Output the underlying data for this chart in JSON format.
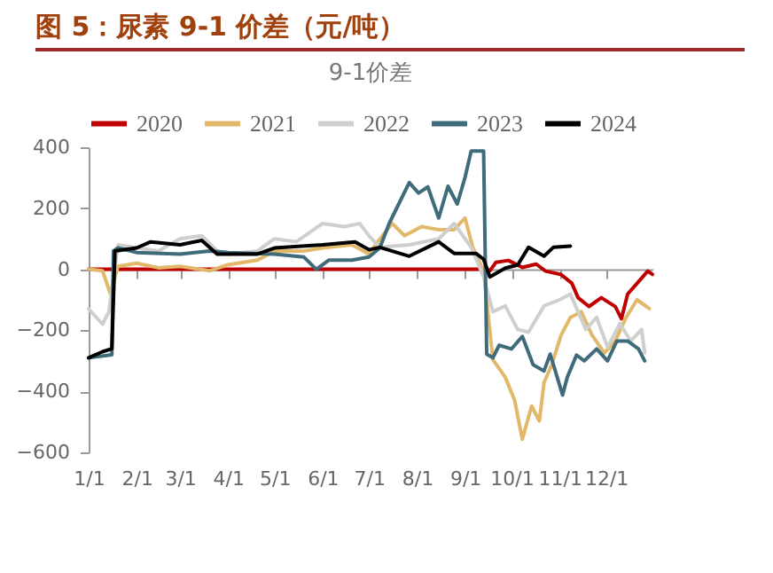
{
  "chart_data": {
    "type": "line",
    "title": "图 5：尿素 9-1 价差（元/吨）",
    "subtitle": "9-1价差",
    "xlim": [
      "--01-01",
      "--12-31"
    ],
    "xticks": [
      {
        "value": "--01-01",
        "label": "1/1"
      },
      {
        "value": "--02-01",
        "label": "2/1"
      },
      {
        "value": "--03-01",
        "label": "3/1"
      },
      {
        "value": "--04-01",
        "label": "4/1"
      },
      {
        "value": "--05-01",
        "label": "5/1"
      },
      {
        "value": "--06-01",
        "label": "6/1"
      },
      {
        "value": "--07-01",
        "label": "7/1"
      },
      {
        "value": "--08-01",
        "label": "8/1"
      },
      {
        "value": "--09-01",
        "label": "9/1"
      },
      {
        "value": "--10-01",
        "label": "10/1"
      },
      {
        "value": "--11-01",
        "label": "11/1"
      },
      {
        "value": "--12-01",
        "label": "12/1"
      }
    ],
    "ylim": [
      -600,
      400
    ],
    "yticks": [
      -600,
      -400,
      -200,
      0,
      200,
      400
    ],
    "legend": "top",
    "series": [
      {
        "name": "2020",
        "color": "#c00000",
        "x": [
          "--01-01",
          "--09-15",
          "--09-17",
          "--09-21",
          "--09-29",
          "--10-08",
          "--10-17",
          "--10-23",
          "--11-02",
          "--11-09",
          "--11-13",
          "--11-20",
          "--11-28",
          "--12-07",
          "--12-11",
          "--12-15",
          "--12-23",
          "--12-28",
          "--12-31"
        ],
        "values": [
          0,
          0,
          -5,
          23,
          29,
          6,
          17,
          -6,
          -17,
          -46,
          -93,
          -122,
          -93,
          -122,
          -162,
          -81,
          -35,
          -6,
          -17
        ]
      },
      {
        "name": "2021",
        "color": "#e2b86a",
        "x": [
          "--01-01",
          "--01-10",
          "--01-15",
          "--01-20",
          "--02-01",
          "--02-15",
          "--03-01",
          "--03-20",
          "--04-01",
          "--04-20",
          "--05-01",
          "--05-20",
          "--06-01",
          "--06-20",
          "--07-01",
          "--07-08",
          "--07-16",
          "--07-24",
          "--08-04",
          "--08-15",
          "--08-25",
          "--09-01",
          "--09-06",
          "--09-13",
          "--09-19",
          "--09-27",
          "--10-03",
          "--10-08",
          "--10-14",
          "--10-19",
          "--10-22",
          "--10-27",
          "--11-02",
          "--11-08",
          "--11-15",
          "--11-22",
          "--11-30",
          "--12-07",
          "--12-14",
          "--12-21",
          "--12-29"
        ],
        "values": [
          0,
          -5,
          -80,
          10,
          20,
          5,
          10,
          -5,
          15,
          30,
          60,
          60,
          70,
          80,
          50,
          99,
          150,
          110,
          140,
          130,
          130,
          168,
          72,
          -6,
          -296,
          -354,
          -429,
          -557,
          -448,
          -497,
          -371,
          -313,
          -216,
          -158,
          -139,
          -216,
          -274,
          -235,
          -158,
          -100,
          -129
        ]
      },
      {
        "name": "2022",
        "color": "#cfcfcf",
        "x": [
          "--01-01",
          "--01-10",
          "--01-14",
          "--01-20",
          "--02-01",
          "--02-15",
          "--03-01",
          "--03-15",
          "--03-25",
          "--04-01",
          "--04-20",
          "--05-01",
          "--05-15",
          "--06-01",
          "--06-15",
          "--06-25",
          "--07-01",
          "--07-08",
          "--07-27",
          "--08-15",
          "--08-25",
          "--09-05",
          "--09-13",
          "--09-19",
          "--09-27",
          "--10-05",
          "--10-12",
          "--10-22",
          "--11-01",
          "--11-08",
          "--11-13",
          "--11-18",
          "--11-25",
          "--12-02",
          "--12-10",
          "--12-17",
          "--12-24",
          "--12-26"
        ],
        "values": [
          -130,
          -180,
          -140,
          80,
          70,
          60,
          100,
          110,
          60,
          50,
          60,
          100,
          90,
          150,
          140,
          150,
          110,
          72,
          80,
          100,
          150,
          72,
          -25,
          -139,
          -120,
          -197,
          -206,
          -120,
          -100,
          -81,
          -139,
          -197,
          -158,
          -255,
          -178,
          -235,
          -197,
          -274
        ]
      },
      {
        "name": "2023",
        "color": "#3f6b7a",
        "x": [
          "--01-01",
          "--01-16",
          "--01-17",
          "--01-20",
          "--02-01",
          "--03-01",
          "--03-20",
          "--04-01",
          "--05-01",
          "--05-20",
          "--05-28",
          "--06-05",
          "--06-20",
          "--07-01",
          "--07-08",
          "--07-14",
          "--07-27",
          "--08-02",
          "--08-08",
          "--08-15",
          "--08-21",
          "--08-27",
          "--09-01",
          "--09-05",
          "--09-13",
          "--09-15",
          "--09-19",
          "--09-23",
          "--10-01",
          "--10-08",
          "--10-15",
          "--10-22",
          "--10-26",
          "--11-03",
          "--11-06",
          "--11-12",
          "--11-17",
          "--11-25",
          "--12-02",
          "--12-08",
          "--12-15",
          "--12-22",
          "--12-26"
        ],
        "values": [
          -290,
          -280,
          60,
          70,
          55,
          50,
          60,
          55,
          50,
          40,
          0,
          30,
          30,
          40,
          70,
          150,
          284,
          250,
          270,
          168,
          272,
          214,
          301,
          388,
          388,
          -278,
          -290,
          -249,
          -261,
          -220,
          -313,
          -333,
          -278,
          -412,
          -354,
          -281,
          -300,
          -261,
          -300,
          -235,
          -235,
          -261,
          -300
        ]
      },
      {
        "name": "2024",
        "color": "#000000",
        "x": [
          "--01-01",
          "--01-10",
          "--01-16",
          "--01-18",
          "--02-01",
          "--02-10",
          "--03-01",
          "--03-15",
          "--03-25",
          "--04-01",
          "--04-20",
          "--05-01",
          "--06-01",
          "--06-22",
          "--07-01",
          "--07-08",
          "--07-27",
          "--08-15",
          "--08-25",
          "--09-08",
          "--09-13",
          "--09-17",
          "--09-27",
          "--10-05",
          "--10-12",
          "--10-22",
          "--10-28",
          "--11-08"
        ],
        "values": [
          -290,
          -270,
          -260,
          60,
          70,
          90,
          80,
          95,
          50,
          50,
          50,
          70,
          80,
          90,
          64,
          72,
          43,
          90,
          52,
          52,
          33,
          -25,
          4,
          14,
          72,
          43,
          72,
          76
        ]
      }
    ]
  }
}
